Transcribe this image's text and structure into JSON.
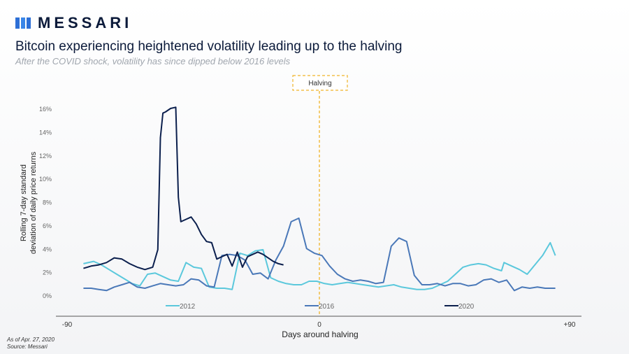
{
  "brand": {
    "name": "MESSARI"
  },
  "header": {
    "title": "Bitcoin experiencing heightened volatility leading up to the halving",
    "subtitle": "After the COVID shock, volatility has since dipped below 2016 levels"
  },
  "footnotes": {
    "as_of": "As of Apr. 27, 2020",
    "source": "Source: Messari"
  },
  "colors": {
    "s2012": "#5bc8dc",
    "s2016": "#4a78b8",
    "s2020": "#0b1f4d",
    "halving": "#f0b429",
    "axis": "#555555"
  },
  "chart_data": {
    "type": "line",
    "xlabel": "Days around halving",
    "ylabel": "Rolling 7-day standard deviation of daily price returns",
    "xlim": [
      -90,
      90
    ],
    "ylim": [
      0,
      16
    ],
    "x_ticks": [
      {
        "value": -90,
        "label": "-90"
      },
      {
        "value": 0,
        "label": "0"
      },
      {
        "value": 90,
        "label": "+90"
      }
    ],
    "y_ticks": [
      {
        "value": 0,
        "label": "0%"
      },
      {
        "value": 2,
        "label": "2%"
      },
      {
        "value": 4,
        "label": "4%"
      },
      {
        "value": 6,
        "label": "6%"
      },
      {
        "value": 8,
        "label": "8%"
      },
      {
        "value": 10,
        "label": "10%"
      },
      {
        "value": 12,
        "label": "12%"
      },
      {
        "value": 14,
        "label": "14%"
      },
      {
        "value": 16,
        "label": "16%"
      }
    ],
    "annotation": {
      "x": 0,
      "label": "Halving"
    },
    "legend_position": "bottom",
    "series": [
      {
        "name": "2012",
        "color": "#5bc8dc",
        "x": [
          -92,
          -88,
          -85,
          -82,
          -79,
          -76,
          -73,
          -70,
          -67,
          -64,
          -61,
          -58,
          -55,
          -52,
          -49,
          -46,
          -43,
          -40,
          -37,
          -34,
          -31,
          -28,
          -25,
          -22,
          -19,
          -16,
          -13,
          -10,
          -7,
          -4,
          -1,
          2,
          5,
          8,
          11,
          14,
          17,
          20,
          23,
          26,
          29,
          32,
          35,
          38,
          41,
          44,
          47,
          50,
          53,
          56,
          59,
          62,
          65,
          68,
          71,
          72,
          75,
          78,
          81,
          84,
          87,
          90,
          92
        ],
        "y": [
          2.7,
          2.9,
          2.6,
          2.2,
          1.8,
          1.4,
          1.0,
          0.8,
          1.8,
          1.9,
          1.6,
          1.3,
          1.2,
          2.8,
          2.4,
          2.3,
          0.7,
          0.6,
          0.6,
          0.5,
          3.6,
          3.4,
          3.8,
          3.9,
          1.5,
          1.2,
          1.0,
          0.9,
          0.9,
          1.2,
          1.2,
          1.0,
          0.9,
          1.0,
          1.1,
          1.0,
          0.9,
          0.8,
          0.7,
          0.8,
          0.9,
          0.7,
          0.6,
          0.5,
          0.5,
          0.6,
          0.9,
          1.2,
          1.8,
          2.4,
          2.6,
          2.7,
          2.6,
          2.3,
          2.1,
          2.8,
          2.5,
          2.2,
          1.8,
          2.6,
          3.4,
          4.5,
          3.4
        ]
      },
      {
        "name": "2016",
        "color": "#4a78b8",
        "x": [
          -92,
          -89,
          -86,
          -83,
          -80,
          -77,
          -74,
          -71,
          -68,
          -65,
          -62,
          -59,
          -56,
          -53,
          -50,
          -47,
          -44,
          -41,
          -38,
          -35,
          -32,
          -29,
          -26,
          -23,
          -20,
          -17,
          -14,
          -11,
          -8,
          -5,
          -2,
          1,
          4,
          7,
          10,
          13,
          16,
          19,
          22,
          25,
          28,
          31,
          34,
          37,
          40,
          43,
          46,
          49,
          52,
          55,
          58,
          61,
          64,
          67,
          70,
          73,
          76,
          79,
          82,
          85,
          88,
          92
        ],
        "y": [
          0.6,
          0.6,
          0.5,
          0.4,
          0.7,
          0.9,
          1.1,
          0.7,
          0.6,
          0.8,
          1.0,
          0.9,
          0.8,
          0.9,
          1.4,
          1.3,
          0.8,
          0.7,
          3.4,
          3.5,
          3.4,
          3.0,
          1.8,
          1.9,
          1.4,
          3.0,
          4.2,
          6.3,
          6.6,
          4.0,
          3.6,
          3.4,
          2.5,
          1.8,
          1.4,
          1.2,
          1.3,
          1.2,
          1.0,
          1.1,
          4.2,
          4.9,
          4.6,
          1.7,
          0.9,
          0.9,
          1.0,
          0.8,
          1.0,
          1.0,
          0.8,
          0.9,
          1.3,
          1.4,
          1.1,
          1.3,
          0.4,
          0.7,
          0.6,
          0.7,
          0.6,
          0.6
        ]
      },
      {
        "name": "2020",
        "color": "#0b1f4d",
        "x": [
          -92,
          -89,
          -86,
          -83,
          -80,
          -77,
          -74,
          -71,
          -68,
          -65,
          -63,
          -62,
          -61,
          -60,
          -58,
          -56,
          -55,
          -54,
          -52,
          -50,
          -48,
          -46,
          -44,
          -42,
          -40,
          -38,
          -36,
          -34,
          -32,
          -30,
          -28,
          -26,
          -24,
          -22,
          -20,
          -18,
          -16,
          -14
        ],
        "y": [
          2.3,
          2.5,
          2.6,
          2.8,
          3.2,
          3.1,
          2.7,
          2.4,
          2.2,
          2.4,
          3.9,
          13.5,
          15.6,
          15.7,
          16.0,
          16.1,
          8.4,
          6.3,
          6.5,
          6.7,
          6.1,
          5.2,
          4.6,
          4.5,
          3.1,
          3.3,
          3.5,
          2.5,
          3.7,
          2.4,
          3.3,
          3.5,
          3.7,
          3.5,
          3.2,
          2.9,
          2.7,
          2.6
        ]
      }
    ]
  }
}
